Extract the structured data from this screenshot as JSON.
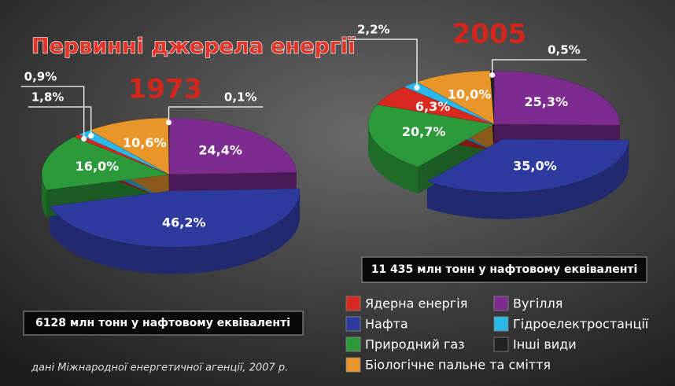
{
  "title": "Первинні джерела енергії",
  "source": "дані Міжнародної енергетичної агенції, 2007 р.",
  "chart_data": [
    {
      "type": "pie",
      "title": "1973",
      "note": "6128 млн тонн у нафтовому еквіваленті",
      "categories": [
        "Вугілля",
        "Нафта",
        "Природний газ",
        "Ядерна енергія",
        "Гідроелектростанції",
        "Біологічне пальне та сміття",
        "Інші види"
      ],
      "colors": [
        "#7d2b8f",
        "#2f3a9e",
        "#2c9a3a",
        "#d9281f",
        "#2ab8ea",
        "#e8952a",
        "#222222"
      ],
      "values": [
        24.4,
        46.2,
        16.0,
        0.9,
        1.8,
        10.6,
        0.1
      ],
      "value_labels": [
        "24,4%",
        "46,2%",
        "16,0%",
        "0,9%",
        "1,8%",
        "10,6%",
        "0,1%"
      ]
    },
    {
      "type": "pie",
      "title": "2005",
      "note": "11 435 млн тонн у нафтовому еквіваленті",
      "categories": [
        "Вугілля",
        "Нафта",
        "Природний газ",
        "Ядерна енергія",
        "Гідроелектростанції",
        "Біологічне пальне та сміття",
        "Інші види"
      ],
      "colors": [
        "#7d2b8f",
        "#2f3a9e",
        "#2c9a3a",
        "#d9281f",
        "#2ab8ea",
        "#e8952a",
        "#222222"
      ],
      "values": [
        25.3,
        35.0,
        20.7,
        6.3,
        2.2,
        10.0,
        0.5
      ],
      "value_labels": [
        "25,3%",
        "35,0%",
        "20,7%",
        "6,3%",
        "2,2%",
        "10,0%",
        "0,5%"
      ]
    }
  ]
}
